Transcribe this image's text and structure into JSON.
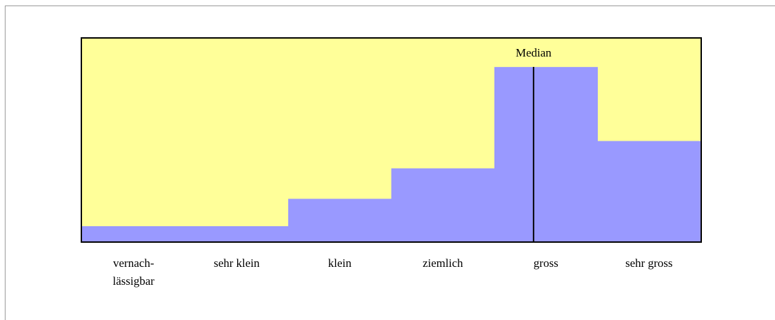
{
  "chart_data": {
    "type": "bar",
    "categories": [
      "vernach-\nlässigbar",
      "sehr klein",
      "klein",
      "ziemlich",
      "gross",
      "sehr gross"
    ],
    "values": [
      7.5,
      7.5,
      21,
      36,
      86,
      49.5
    ],
    "color": "#9999ff",
    "background": "#ffff99",
    "ylim": [
      0,
      100
    ],
    "xlim": [
      0,
      6
    ],
    "annotations": [
      {
        "text": "Median",
        "x": 4.38
      }
    ]
  }
}
